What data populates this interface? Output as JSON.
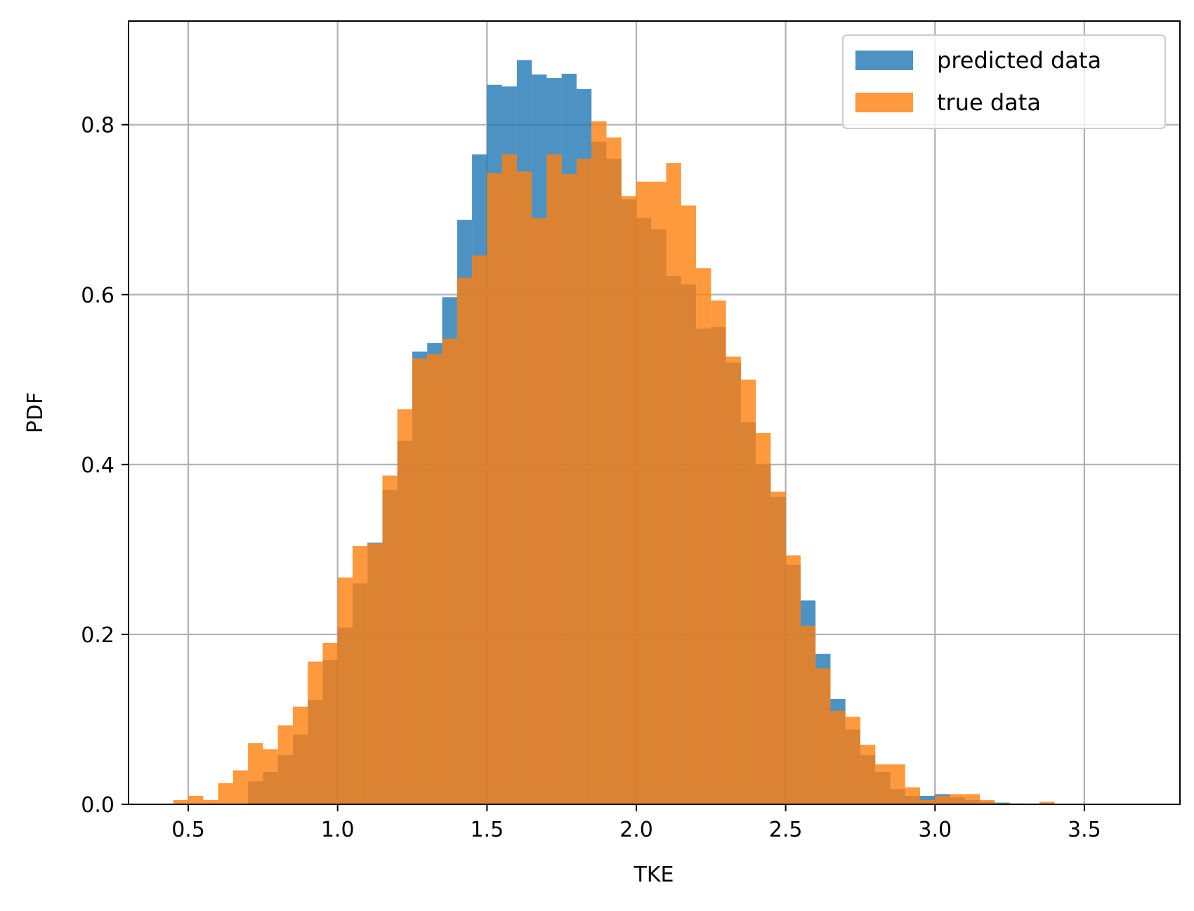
{
  "chart_data": {
    "type": "bar",
    "subtype": "overlaid-histogram",
    "xlabel": "TKE",
    "ylabel": "PDF",
    "xlim": [
      0.3,
      3.82
    ],
    "ylim": [
      0.0,
      0.922
    ],
    "xticks": [
      0.5,
      1.0,
      1.5,
      2.0,
      2.5,
      3.0,
      3.5
    ],
    "xtick_labels": [
      "0.5",
      "1.0",
      "1.5",
      "2.0",
      "2.5",
      "3.0",
      "3.5"
    ],
    "yticks": [
      0.0,
      0.2,
      0.4,
      0.6,
      0.8
    ],
    "ytick_labels": [
      "0.0",
      "0.2",
      "0.4",
      "0.6",
      "0.8"
    ],
    "grid": true,
    "legend_position": "top-right",
    "series": [
      {
        "name": "predicted data",
        "color": "#1f77b4",
        "alpha": 0.8,
        "bin_edges": [
          0.7,
          0.75,
          0.8,
          0.85,
          0.9,
          0.95,
          1.0,
          1.05,
          1.1,
          1.15,
          1.2,
          1.25,
          1.3,
          1.35,
          1.4,
          1.45,
          1.5,
          1.55,
          1.6,
          1.65,
          1.7,
          1.75,
          1.8,
          1.85,
          1.9,
          1.95,
          2.0,
          2.05,
          2.1,
          2.15,
          2.2,
          2.25,
          2.3,
          2.35,
          2.4,
          2.45,
          2.5,
          2.55,
          2.6,
          2.65,
          2.7,
          2.75,
          2.8,
          2.85,
          2.9,
          2.95,
          3.0,
          3.05,
          3.1,
          3.15,
          3.2,
          3.25,
          3.3
        ],
        "values": [
          0.027,
          0.038,
          0.058,
          0.082,
          0.123,
          0.17,
          0.208,
          0.26,
          0.308,
          0.37,
          0.428,
          0.533,
          0.543,
          0.597,
          0.688,
          0.765,
          0.847,
          0.845,
          0.876,
          0.859,
          0.855,
          0.86,
          0.842,
          0.78,
          0.76,
          0.712,
          0.69,
          0.677,
          0.622,
          0.612,
          0.56,
          0.562,
          0.52,
          0.45,
          0.4,
          0.362,
          0.282,
          0.24,
          0.177,
          0.124,
          0.088,
          0.058,
          0.038,
          0.018,
          0.01,
          0.01,
          0.012,
          0.008,
          0.005,
          0.003,
          0.002,
          0.001
        ]
      },
      {
        "name": "true data",
        "color": "#ff7f0e",
        "alpha": 0.8,
        "bin_edges": [
          0.45,
          0.5,
          0.55,
          0.6,
          0.65,
          0.7,
          0.75,
          0.8,
          0.85,
          0.9,
          0.95,
          1.0,
          1.05,
          1.1,
          1.15,
          1.2,
          1.25,
          1.3,
          1.35,
          1.4,
          1.45,
          1.5,
          1.55,
          1.6,
          1.65,
          1.7,
          1.75,
          1.8,
          1.85,
          1.9,
          1.95,
          2.0,
          2.05,
          2.1,
          2.15,
          2.2,
          2.25,
          2.3,
          2.35,
          2.4,
          2.45,
          2.5,
          2.55,
          2.6,
          2.65,
          2.7,
          2.75,
          2.8,
          2.85,
          2.9,
          2.95,
          3.0,
          3.05,
          3.1,
          3.15,
          3.2,
          3.25,
          3.3,
          3.35,
          3.4
        ],
        "values": [
          0.005,
          0.01,
          0.005,
          0.025,
          0.04,
          0.072,
          0.065,
          0.093,
          0.115,
          0.168,
          0.19,
          0.267,
          0.304,
          0.307,
          0.387,
          0.465,
          0.525,
          0.53,
          0.548,
          0.62,
          0.646,
          0.743,
          0.765,
          0.745,
          0.69,
          0.765,
          0.742,
          0.76,
          0.804,
          0.785,
          0.716,
          0.733,
          0.733,
          0.755,
          0.705,
          0.631,
          0.593,
          0.527,
          0.5,
          0.437,
          0.368,
          0.293,
          0.21,
          0.16,
          0.11,
          0.103,
          0.07,
          0.047,
          0.047,
          0.02,
          0.005,
          0.01,
          0.012,
          0.012,
          0.005,
          0.001,
          0.001,
          0.001,
          0.003
        ]
      }
    ]
  }
}
